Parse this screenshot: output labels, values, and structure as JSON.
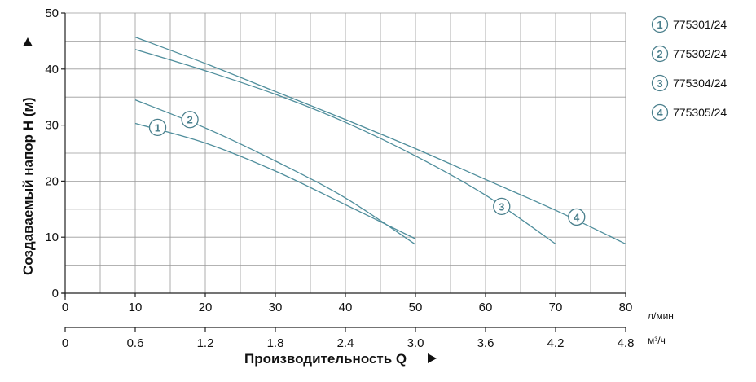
{
  "chart_data": {
    "type": "line",
    "xlabel": "Производительность Q",
    "ylabel": "Создаваемый напор H (м)",
    "xunit": "л/мин",
    "x2unit": "м³/ч",
    "xlim": [
      0,
      80
    ],
    "ylim": [
      0,
      50
    ],
    "xticks": [
      0,
      10,
      20,
      30,
      40,
      50,
      60,
      70,
      80
    ],
    "yticks": [
      0,
      10,
      20,
      30,
      40,
      50
    ],
    "x2ticks": [
      {
        "x": 0,
        "label": "0"
      },
      {
        "x": 10,
        "label": "0.6"
      },
      {
        "x": 20,
        "label": "1.2"
      },
      {
        "x": 30,
        "label": "1.8"
      },
      {
        "x": 40,
        "label": "2.4"
      },
      {
        "x": 50,
        "label": "3.0"
      },
      {
        "x": 60,
        "label": "3.6"
      },
      {
        "x": 70,
        "label": "4.2"
      },
      {
        "x": 80,
        "label": "4.8"
      }
    ],
    "grid": true,
    "legend_position": "right",
    "line_color": "#4f8e9c",
    "marker_color": "#4a7f8c",
    "series": [
      {
        "name": "775301/24",
        "marker": "1",
        "marker_at": [
          13.2,
          29.6
        ],
        "points": [
          [
            10,
            30.3
          ],
          [
            20,
            26.8
          ],
          [
            30,
            21.8
          ],
          [
            40,
            15.8
          ],
          [
            50,
            9.7
          ]
        ]
      },
      {
        "name": "775302/24",
        "marker": "2",
        "marker_at": [
          17.8,
          31.0
        ],
        "points": [
          [
            10,
            34.5
          ],
          [
            20,
            29.5
          ],
          [
            30,
            23.6
          ],
          [
            40,
            17.0
          ],
          [
            50,
            8.7
          ]
        ]
      },
      {
        "name": "775304/24",
        "marker": "3",
        "marker_at": [
          62.3,
          15.5
        ],
        "points": [
          [
            10,
            43.5
          ],
          [
            20,
            39.7
          ],
          [
            30,
            35.5
          ],
          [
            40,
            30.5
          ],
          [
            50,
            24.5
          ],
          [
            60,
            17.5
          ],
          [
            70,
            8.8
          ]
        ]
      },
      {
        "name": "775305/24",
        "marker": "4",
        "marker_at": [
          73.0,
          13.6
        ],
        "points": [
          [
            10,
            45.7
          ],
          [
            20,
            41.0
          ],
          [
            30,
            36.0
          ],
          [
            40,
            31.0
          ],
          [
            50,
            25.8
          ],
          [
            60,
            20.3
          ],
          [
            70,
            14.8
          ],
          [
            80,
            8.8
          ]
        ]
      }
    ]
  }
}
